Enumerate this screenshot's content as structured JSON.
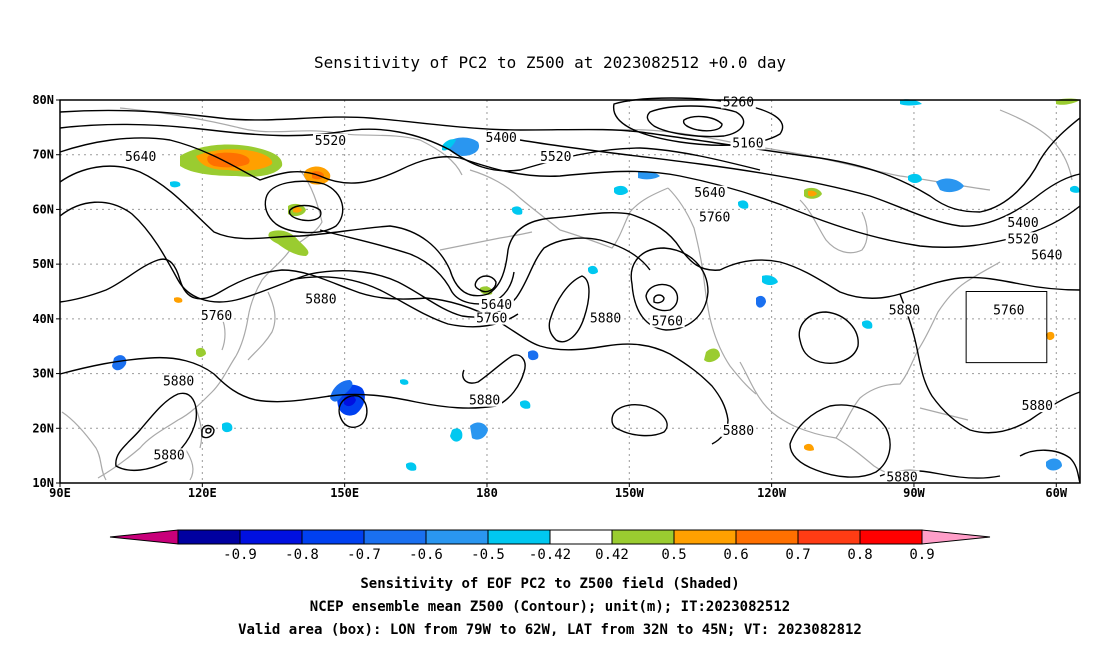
{
  "title": "Sensitivity of PC2 to Z500 at 2023082512 +0.0 day",
  "map": {
    "lat_labels": [
      "80N",
      "70N",
      "60N",
      "50N",
      "40N",
      "30N",
      "20N",
      "10N"
    ],
    "lon_labels": [
      "90E",
      "120E",
      "150E",
      "180",
      "150W",
      "120W",
      "90W",
      "60W"
    ],
    "contour_labels": [
      {
        "text": "5640",
        "lon": 107,
        "lat": 69
      },
      {
        "text": "5520",
        "lon": 147,
        "lat": 72
      },
      {
        "text": "5400",
        "lon": -177,
        "lat": 72.5
      },
      {
        "text": "5520",
        "lon": -165.5,
        "lat": 69
      },
      {
        "text": "5640",
        "lon": -133,
        "lat": 62.5
      },
      {
        "text": "5760",
        "lon": -132,
        "lat": 58
      },
      {
        "text": "5260",
        "lon": -127,
        "lat": 79
      },
      {
        "text": "5160",
        "lon": -125,
        "lat": 71.5
      },
      {
        "text": "5400",
        "lon": -67,
        "lat": 57
      },
      {
        "text": "5520",
        "lon": -67,
        "lat": 54
      },
      {
        "text": "5640",
        "lon": -62,
        "lat": 51
      },
      {
        "text": "5880",
        "lon": 145,
        "lat": 43
      },
      {
        "text": "5760",
        "lon": 123,
        "lat": 40
      },
      {
        "text": "5640",
        "lon": -178,
        "lat": 42
      },
      {
        "text": "5760",
        "lon": -179,
        "lat": 39.5
      },
      {
        "text": "5880",
        "lon": -155,
        "lat": 39.5
      },
      {
        "text": "5760",
        "lon": -142,
        "lat": 39
      },
      {
        "text": "5880",
        "lon": -92,
        "lat": 41
      },
      {
        "text": "5760",
        "lon": -70,
        "lat": 41
      },
      {
        "text": "5880",
        "lon": 115,
        "lat": 28
      },
      {
        "text": "5880",
        "lon": -180.5,
        "lat": 24.5
      },
      {
        "text": "5880",
        "lon": -127,
        "lat": 19
      },
      {
        "text": "5880",
        "lon": -64,
        "lat": 23.5
      },
      {
        "text": "5880",
        "lon": 113,
        "lat": 14.5
      },
      {
        "text": "5880",
        "lon": -92.5,
        "lat": 10.5
      }
    ],
    "valid_box": {
      "lon_min": -79,
      "lon_max": -62,
      "lat_min": 32,
      "lat_max": 45
    }
  },
  "colorbar": {
    "labels": [
      "-0.9",
      "-0.8",
      "-0.7",
      "-0.6",
      "-0.5",
      "-0.42",
      "0.42",
      "0.5",
      "0.6",
      "0.7",
      "0.8",
      "0.9"
    ],
    "colors": {
      "below": "#c8007a",
      "bins": [
        "#0000a0",
        "#0010e0",
        "#0040f0",
        "#1a70f0",
        "#2a96f0",
        "#00c8f0",
        "#ffffff",
        "#9acc30",
        "#ffa000",
        "#ff7000",
        "#ff3c14",
        "#ff0000"
      ],
      "above": "#ff9ec8"
    }
  },
  "footer": {
    "line1": "Sensitivity of EOF PC2 to Z500 field (Shaded)",
    "line2": "NCEP ensemble mean Z500 (Contour); unit(m); IT:2023082512",
    "line3": "Valid area (box): LON from 79W to 62W, LAT from 32N to 45N; VT: 2023082812"
  }
}
